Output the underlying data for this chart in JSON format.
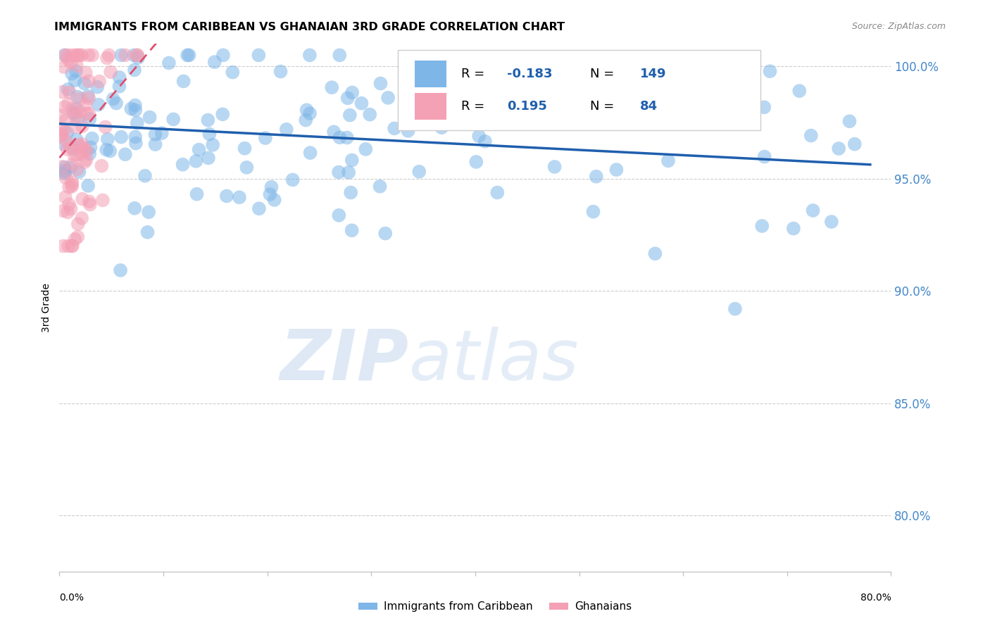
{
  "title": "IMMIGRANTS FROM CARIBBEAN VS GHANAIAN 3RD GRADE CORRELATION CHART",
  "source": "Source: ZipAtlas.com",
  "ylabel": "3rd Grade",
  "ylabel_right_ticks": [
    "100.0%",
    "95.0%",
    "90.0%",
    "85.0%",
    "80.0%"
  ],
  "ylabel_right_vals": [
    1.0,
    0.95,
    0.9,
    0.85,
    0.8
  ],
  "xmin": 0.0,
  "xmax": 0.8,
  "ymin": 0.775,
  "ymax": 1.01,
  "blue_R": -0.183,
  "blue_N": 149,
  "pink_R": 0.195,
  "pink_N": 84,
  "blue_color": "#7EB6E8",
  "pink_color": "#F4A0B5",
  "blue_line_color": "#1F5FAD",
  "pink_line_color": "#E05070",
  "watermark_zip": "ZIP",
  "watermark_atlas": "atlas",
  "grid_color": "#CCCCCC",
  "background_color": "#FFFFFF"
}
